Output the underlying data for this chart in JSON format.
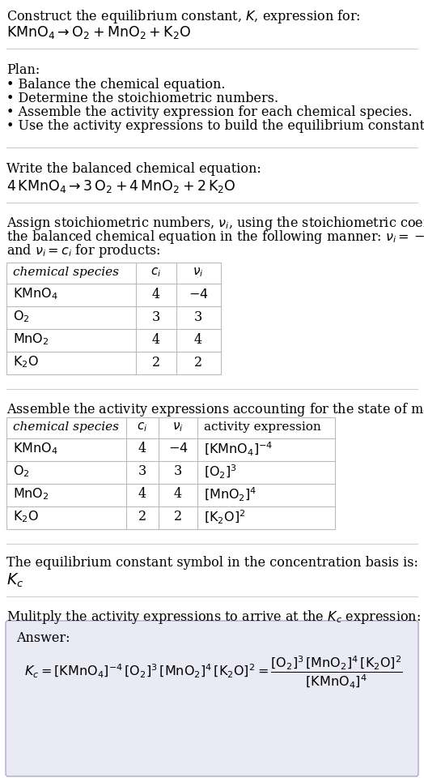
{
  "title_line1": "Construct the equilibrium constant, $K$, expression for:",
  "title_line2": "$\\mathrm{KMnO_4} \\rightarrow \\mathrm{O_2} + \\mathrm{MnO_2} + \\mathrm{K_2O}$",
  "plan_header": "Plan:",
  "plan_items": [
    "• Balance the chemical equation.",
    "• Determine the stoichiometric numbers.",
    "• Assemble the activity expression for each chemical species.",
    "• Use the activity expressions to build the equilibrium constant expression."
  ],
  "balanced_header": "Write the balanced chemical equation:",
  "balanced_eq": "$4\\,\\mathrm{KMnO_4} \\rightarrow 3\\,\\mathrm{O_2} + 4\\,\\mathrm{MnO_2} + 2\\,\\mathrm{K_2O}$",
  "stoich_lines": [
    "Assign stoichiometric numbers, $\\nu_i$, using the stoichiometric coefficients, $c_i$, from",
    "the balanced chemical equation in the following manner: $\\nu_i = -c_i$ for reactants",
    "and $\\nu_i = c_i$ for products:"
  ],
  "table1_cols": [
    "chemical species",
    "$c_i$",
    "$\\nu_i$"
  ],
  "table1_data": [
    [
      "$\\mathrm{KMnO_4}$",
      "4",
      "$-4$"
    ],
    [
      "$\\mathrm{O_2}$",
      "3",
      "3"
    ],
    [
      "$\\mathrm{MnO_2}$",
      "4",
      "4"
    ],
    [
      "$\\mathrm{K_2O}$",
      "2",
      "2"
    ]
  ],
  "activity_header": "Assemble the activity expressions accounting for the state of matter and $\\nu_i$:",
  "table2_cols": [
    "chemical species",
    "$c_i$",
    "$\\nu_i$",
    "activity expression"
  ],
  "table2_data": [
    [
      "$\\mathrm{KMnO_4}$",
      "4",
      "$-4$",
      "$[\\mathrm{KMnO_4}]^{-4}$"
    ],
    [
      "$\\mathrm{O_2}$",
      "3",
      "3",
      "$[\\mathrm{O_2}]^{3}$"
    ],
    [
      "$\\mathrm{MnO_2}$",
      "4",
      "4",
      "$[\\mathrm{MnO_2}]^{4}$"
    ],
    [
      "$\\mathrm{K_2O}$",
      "2",
      "2",
      "$[\\mathrm{K_2O}]^{2}$"
    ]
  ],
  "kc_header": "The equilibrium constant symbol in the concentration basis is:",
  "kc_symbol": "$K_c$",
  "multiply_header": "Mulitply the activity expressions to arrive at the $K_c$ expression:",
  "answer_label": "Answer:",
  "bg_color": "#ffffff",
  "text_color": "#000000",
  "table_line_color": "#bbbbbb",
  "answer_box_color": "#eaeaf4",
  "answer_box_border": "#aaaacc",
  "font_size": 11.5
}
